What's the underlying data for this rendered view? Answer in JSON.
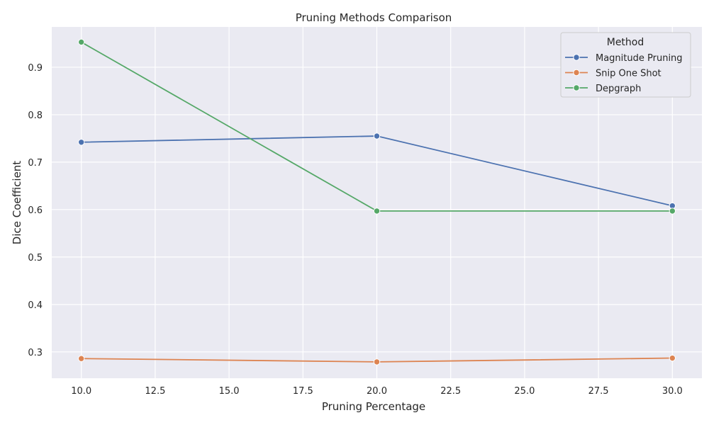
{
  "chart_data": {
    "type": "line",
    "title": "Pruning Methods Comparison",
    "xlabel": "Pruning Percentage",
    "ylabel": "Dice Coefficient",
    "x": [
      10,
      20,
      30
    ],
    "xlim": [
      9.0,
      31.0
    ],
    "ylim": [
      0.2445,
      0.985
    ],
    "xticks": [
      10,
      12.5,
      15,
      17.5,
      20,
      22.5,
      25,
      27.5,
      30
    ],
    "xtick_labels": [
      "10.0",
      "12.5",
      "15.0",
      "17.5",
      "20.0",
      "22.5",
      "25.0",
      "27.5",
      "30.0"
    ],
    "yticks": [
      0.3,
      0.4,
      0.5,
      0.6,
      0.7,
      0.8,
      0.9
    ],
    "ytick_labels": [
      "0.3",
      "0.4",
      "0.5",
      "0.6",
      "0.7",
      "0.8",
      "0.9"
    ],
    "grid": true,
    "legend": {
      "title": "Method",
      "position": "top-right"
    },
    "series": [
      {
        "name": "Magnitude Pruning",
        "color": "#4c72b0",
        "values": [
          0.742,
          0.755,
          0.608
        ]
      },
      {
        "name": "Snip One Shot",
        "color": "#dd8452",
        "values": [
          0.286,
          0.279,
          0.287
        ]
      },
      {
        "name": "Depgraph",
        "color": "#55a868",
        "values": [
          0.953,
          0.597,
          0.597
        ]
      }
    ],
    "background_color": "#eaeaf2",
    "grid_color": "#ffffff"
  }
}
